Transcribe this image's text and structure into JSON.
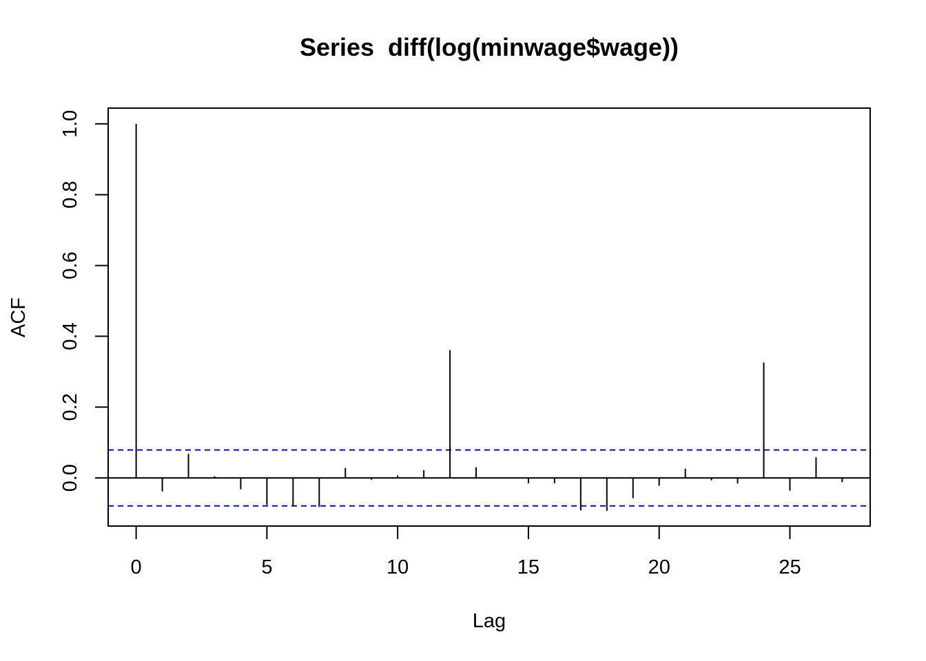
{
  "chart_data": {
    "type": "bar",
    "title": "Series  diff(log(minwage$wage))",
    "xlabel": "Lag",
    "ylabel": "ACF",
    "xlim": [
      -1.07,
      28.07
    ],
    "ylim": [
      -0.1359,
      1.0445
    ],
    "x_ticks": [
      0,
      5,
      10,
      15,
      20,
      25
    ],
    "x_tick_labels": [
      "0",
      "5",
      "10",
      "15",
      "20",
      "25"
    ],
    "y_ticks": [
      0.0,
      0.2,
      0.4,
      0.6,
      0.8,
      1.0
    ],
    "y_tick_labels": [
      "0.0",
      "0.2",
      "0.4",
      "0.6",
      "0.8",
      "1.0"
    ],
    "lags": [
      0,
      1,
      2,
      3,
      4,
      5,
      6,
      7,
      8,
      9,
      10,
      11,
      12,
      13,
      14,
      15,
      16,
      17,
      18,
      19,
      20,
      21,
      22,
      23,
      24,
      25,
      26,
      27
    ],
    "acf": [
      1.0,
      -0.038,
      0.068,
      0.005,
      -0.032,
      -0.076,
      -0.08,
      -0.082,
      0.028,
      -0.005,
      0.007,
      0.022,
      0.361,
      0.03,
      0.001,
      -0.015,
      -0.015,
      -0.092,
      -0.093,
      -0.057,
      -0.022,
      0.026,
      -0.007,
      -0.016,
      0.326,
      -0.036,
      0.058,
      -0.012
    ],
    "confidence_bound": 0.079,
    "confidence_color": "#0000cc",
    "bar_color": "#000000",
    "grid": false,
    "legend": "none"
  }
}
